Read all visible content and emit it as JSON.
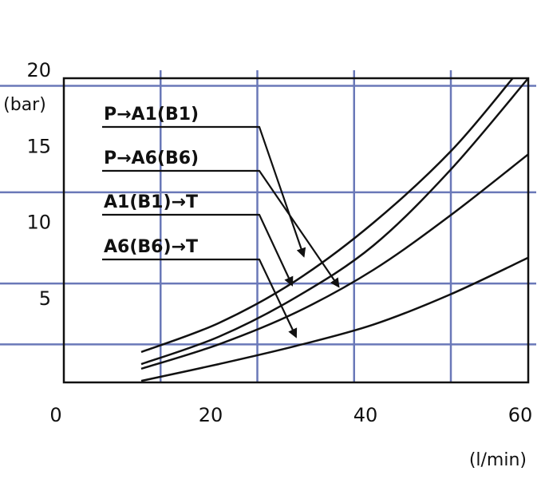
{
  "chart_data": {
    "type": "line",
    "title": "",
    "xlabel": "(l/min)",
    "ylabel": "(bar)",
    "xlim": [
      0,
      60
    ],
    "ylim": [
      0,
      20
    ],
    "x_ticks": [
      "0",
      "20",
      "40",
      "60"
    ],
    "y_ticks": [
      "5",
      "10",
      "15",
      "20"
    ],
    "grid": true,
    "colors": {
      "curve": "#111111",
      "grid": "#6a78b8",
      "frame": "#111111",
      "text": "#111111"
    },
    "series": [
      {
        "name": "P→A1(B1)",
        "x": [
          10,
          20,
          30,
          40,
          50,
          58
        ],
        "y": [
          2.0,
          3.9,
          6.7,
          10.5,
          15.2,
          20.0
        ]
      },
      {
        "name": "P→A6(B6)",
        "x": [
          10,
          20,
          30,
          40,
          50,
          60
        ],
        "y": [
          1.2,
          3.0,
          5.6,
          9.0,
          14.0,
          20.0
        ]
      },
      {
        "name": "A1(B1)→T",
        "x": [
          10,
          20,
          30,
          40,
          50,
          60
        ],
        "y": [
          0.9,
          2.5,
          4.6,
          7.4,
          11.0,
          15.0
        ]
      },
      {
        "name": "A6(B6)→T",
        "x": [
          10,
          20,
          30,
          40,
          50,
          60
        ],
        "y": [
          0.1,
          1.2,
          2.4,
          3.8,
          5.8,
          8.2
        ]
      }
    ],
    "annotations": [
      {
        "label": "P→A1(B1)",
        "points_to": {
          "x": 31,
          "y": 8.3
        }
      },
      {
        "label": "P→A6(B6)",
        "points_to": {
          "x": 35.5,
          "y": 6.3
        }
      },
      {
        "label": "A1(B1)→T",
        "points_to": {
          "x": 29.5,
          "y": 6.4
        }
      },
      {
        "label": "A6(B6)→T",
        "points_to": {
          "x": 30,
          "y": 3.0
        }
      }
    ]
  }
}
